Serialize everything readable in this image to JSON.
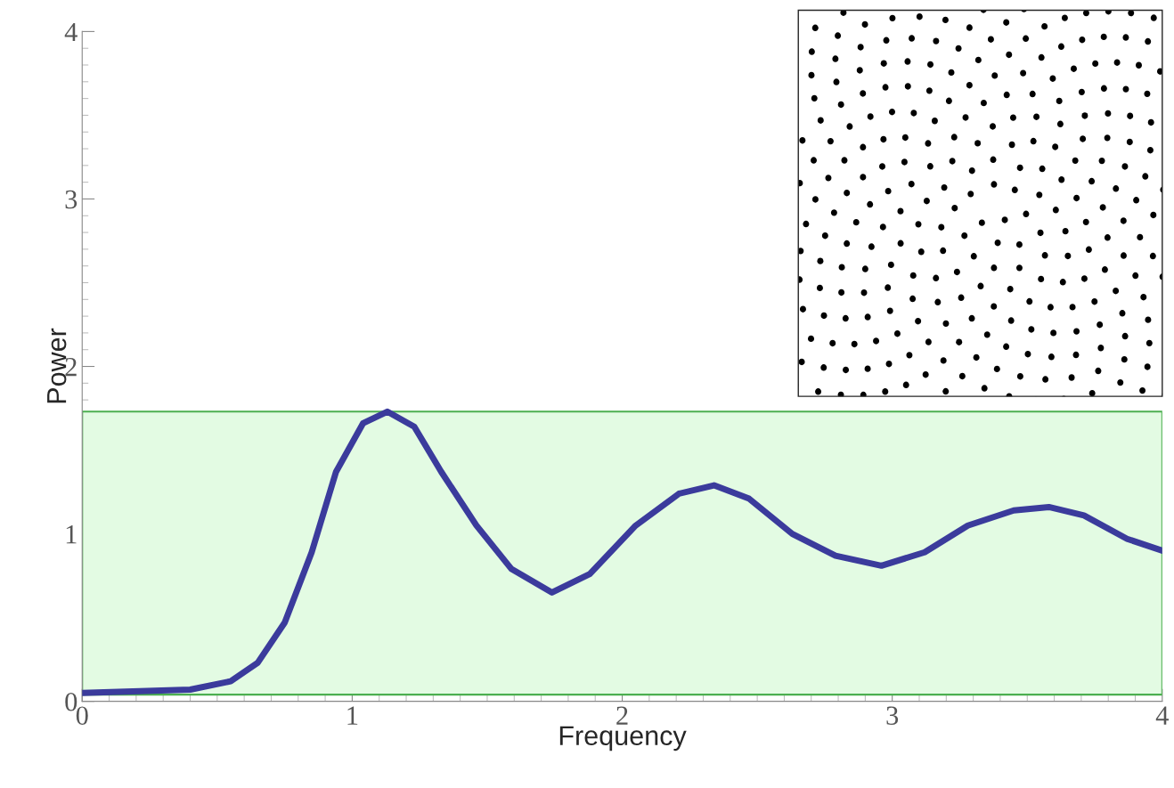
{
  "chart_data": {
    "type": "line",
    "xlabel": "Frequency",
    "ylabel": "Power",
    "x": [
      0,
      0.4,
      0.55,
      0.65,
      0.75,
      0.85,
      0.94,
      1.04,
      1.13,
      1.23,
      1.33,
      1.46,
      1.59,
      1.74,
      1.88,
      2.05,
      2.21,
      2.34,
      2.47,
      2.63,
      2.79,
      2.96,
      3.12,
      3.28,
      3.45,
      3.58,
      3.71,
      3.87,
      4.0
    ],
    "series": [
      {
        "color": "#3b3b9c",
        "values": [
          0.05,
          0.07,
          0.12,
          0.23,
          0.47,
          0.89,
          1.37,
          1.66,
          1.73,
          1.64,
          1.37,
          1.05,
          0.79,
          0.65,
          0.76,
          1.05,
          1.24,
          1.29,
          1.21,
          1.0,
          0.87,
          0.81,
          0.89,
          1.05,
          1.14,
          1.16,
          1.11,
          0.97,
          0.9
        ]
      }
    ],
    "bands": [
      {
        "axis": "y",
        "from": 0.04,
        "to": 1.73,
        "color": "#e3fbe3"
      }
    ],
    "xlim": [
      0,
      4
    ],
    "ylim": [
      0,
      4
    ],
    "xticks": [
      0,
      1,
      2,
      3,
      4
    ],
    "yticks": [
      0,
      1,
      2,
      3,
      4
    ],
    "grid": false,
    "marker": "none",
    "line_style": "solid"
  }
}
